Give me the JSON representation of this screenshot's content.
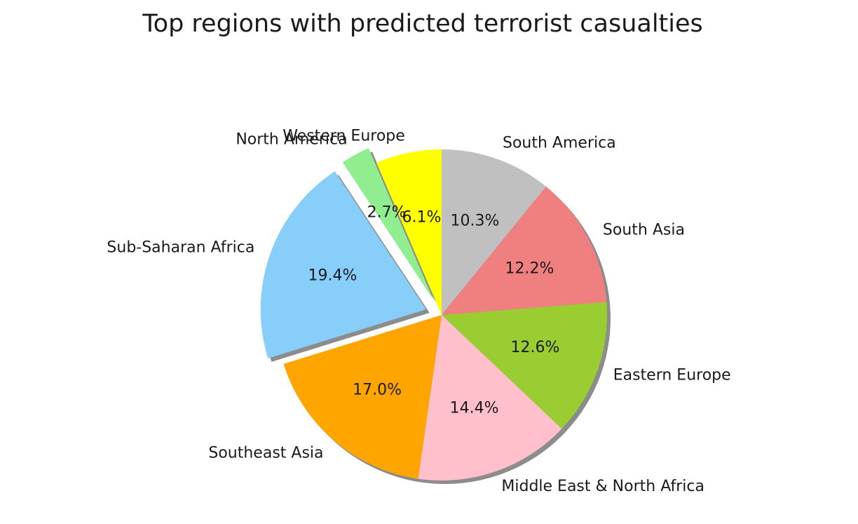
{
  "chart_data": {
    "type": "pie",
    "title": "Top regions with predicted terrorist casualties",
    "start_angle_deg": 90,
    "direction": "clockwise",
    "shadow": true,
    "slices": [
      {
        "label": "South America",
        "value": 10.3,
        "pct_label": "10.3%",
        "color": "#c0c0c0",
        "explode": 0
      },
      {
        "label": "South Asia",
        "value": 12.2,
        "pct_label": "12.2%",
        "color": "#f08080",
        "explode": 0
      },
      {
        "label": "Eastern Europe",
        "value": 12.6,
        "pct_label": "12.6%",
        "color": "#9acd32",
        "explode": 0
      },
      {
        "label": "Middle East & North Africa",
        "value": 14.4,
        "pct_label": "14.4%",
        "color": "#ffc0cb",
        "explode": 0
      },
      {
        "label": "Southeast Asia",
        "value": 17.0,
        "pct_label": "17.0%",
        "color": "#ffa500",
        "explode": 0
      },
      {
        "label": "Sub-Saharan Africa",
        "value": 19.4,
        "pct_label": "19.4%",
        "color": "#87cefa",
        "explode": 0.1
      },
      {
        "label": "North America",
        "value": 2.7,
        "pct_label": "2.7%",
        "color": "#90ee90",
        "explode": 0.1
      },
      {
        "label": "Western Europe",
        "value": 6.1,
        "pct_label": "6.1%",
        "color": "#ffff00",
        "explode": 0
      }
    ]
  }
}
